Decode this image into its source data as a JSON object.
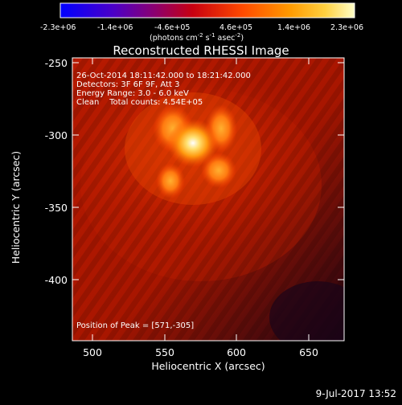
{
  "figure": {
    "title": "Reconstructed RHESSI Image",
    "date_stamp": "9-Jul-2017 13:52"
  },
  "colorbar": {
    "ticks": [
      "-2.3e+06",
      "-1.4e+06",
      "-4.6e+05",
      "4.6e+05",
      "1.4e+06",
      "2.3e+06"
    ],
    "units_text": "(photons cm",
    "units_sup1": "-2",
    "units_mid": " s",
    "units_sup2": "-1",
    "units_mid2": " asec",
    "units_sup3": "-2",
    "units_end": ")"
  },
  "axes": {
    "xlabel": "Heliocentric X (arcsec)",
    "ylabel": "Heliocentric Y (arcsec)",
    "xticks": [
      "500",
      "550",
      "600",
      "650"
    ],
    "yticks": [
      "-250",
      "-300",
      "-350",
      "-400"
    ]
  },
  "annotations": {
    "line1": "26-Oct-2014 18:11:42.000 to 18:21:42.000",
    "line2": "Detectors: 3F 6F 9F, Att 3",
    "line3": "Energy Range: 3.0 - 6.0 keV",
    "line4": "Clean    Total counts: 4.54E+05",
    "peak": "Position of Peak = [571,-305]"
  },
  "image_meta": {
    "colormap": "red-temperature",
    "peak_xy": [
      571,
      -305
    ],
    "x_range": [
      480,
      675
    ],
    "y_range": [
      -440,
      -245
    ]
  }
}
